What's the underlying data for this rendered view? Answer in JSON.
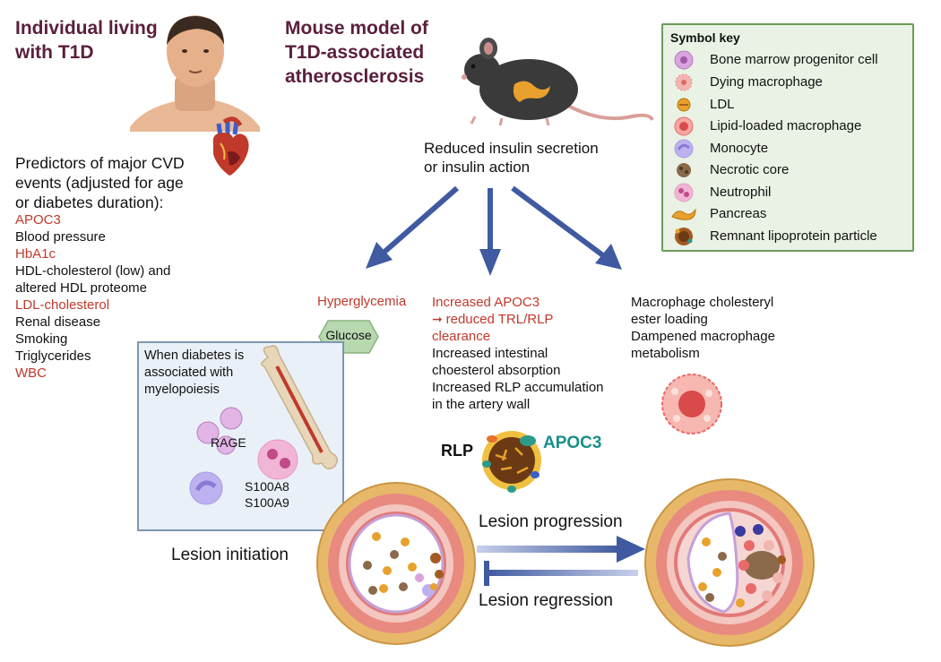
{
  "left_panel": {
    "title_line1": "Individual living",
    "title_line2": "with T1D",
    "predictors_heading": [
      "Predictors of major CVD",
      "events (adjusted for age",
      "or diabetes duration):"
    ],
    "predictors": [
      {
        "text": "APOC3",
        "color": "#c0392b"
      },
      {
        "text": "Blood pressure",
        "color": "#111111"
      },
      {
        "text": "HbA1c",
        "color": "#c0392b"
      },
      {
        "text": "HDL-cholesterol (low) and",
        "color": "#111111"
      },
      {
        "text": "altered HDL proteome",
        "color": "#111111"
      },
      {
        "text": "LDL-cholesterol",
        "color": "#c0392b"
      },
      {
        "text": "Renal disease",
        "color": "#111111"
      },
      {
        "text": "Smoking",
        "color": "#111111"
      },
      {
        "text": "Triglycerides",
        "color": "#111111"
      },
      {
        "text": "WBC",
        "color": "#c0392b"
      }
    ]
  },
  "mouse_panel": {
    "title_line1": "Mouse model of",
    "title_line2": "T1D-associated",
    "title_line3": "atherosclerosis",
    "insulin_line1": "Reduced insulin secretion",
    "insulin_line2": "or insulin action"
  },
  "symbol_key": {
    "title": "Symbol key",
    "items": [
      {
        "label": "Bone marrow progenitor cell",
        "icon": "progenitor-cell-icon",
        "color": "#d9a3dd"
      },
      {
        "label": "Dying macrophage",
        "icon": "dying-macrophage-icon",
        "color": "#f2b5b0"
      },
      {
        "label": "LDL",
        "icon": "ldl-icon",
        "color": "#e8a12c"
      },
      {
        "label": "Lipid-loaded macrophage",
        "icon": "lipid-macrophage-icon",
        "color": "#e96a6a"
      },
      {
        "label": "Monocyte",
        "icon": "monocyte-icon",
        "color": "#a99be6"
      },
      {
        "label": "Necrotic core",
        "icon": "necrotic-core-icon",
        "color": "#8a6a4a"
      },
      {
        "label": "Neutrophil",
        "icon": "neutrophil-icon",
        "color": "#e89ac4"
      },
      {
        "label": "Pancreas",
        "icon": "pancreas-icon",
        "color": "#e8a12c"
      },
      {
        "label": "Remnant lipoprotein particle",
        "icon": "remnant-particle-icon",
        "color": "#a35a22"
      }
    ]
  },
  "mechanisms": {
    "hyperglycemia": "Hyperglycemia",
    "glucose": "Glucose",
    "apoc3_line1": "Increased APOC3",
    "apoc3_line2": "reduced TRL/RLP",
    "apoc3_line3": "clearance",
    "intestinal_line1": "Increased intestinal",
    "intestinal_line2": "choesterol absorption",
    "rlp_line1": "Increased RLP accumulation",
    "rlp_line2": "in the artery wall",
    "macro_line1": "Macrophage cholesteryl",
    "macro_line2": "ester loading",
    "macro_line3": "Dampened macrophage",
    "macro_line4": "metabolism"
  },
  "myelopoiesis": {
    "line1": "When diabetes is",
    "line2": "associated with",
    "line3": "myelopoiesis",
    "rage": "RAGE",
    "s100a8": "S100A8",
    "s100a9": "S100A9"
  },
  "rlp": {
    "label": "RLP",
    "apoc3": "APOC3"
  },
  "lesion": {
    "initiation": "Lesion initiation",
    "progression": "Lesion progression",
    "regression": "Lesion regression"
  },
  "colors": {
    "heading": "#5a1f3c",
    "red_text": "#c0392b",
    "arrow": "#3f5aa0",
    "apoc3_teal": "#1a8f8a"
  }
}
